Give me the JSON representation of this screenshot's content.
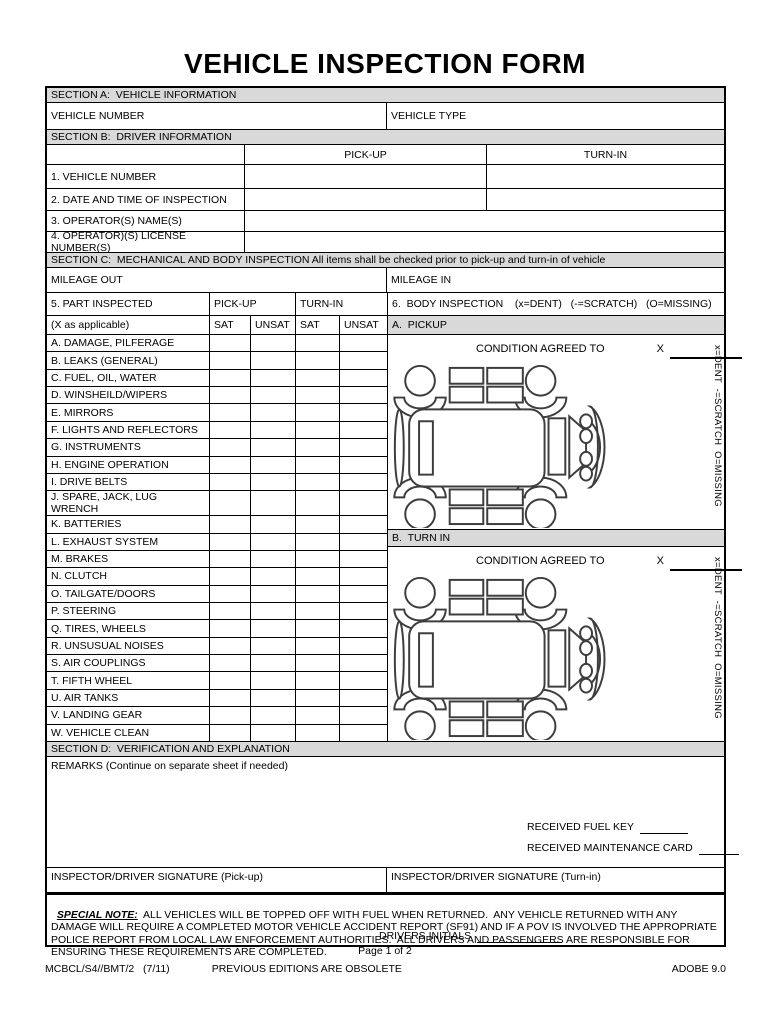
{
  "title": "VEHICLE INSPECTION FORM",
  "colors": {
    "section_bar_gray": "#d9d9d9",
    "border_black": "#000000"
  },
  "section_a": {
    "header": "SECTION A:  VEHICLE INFORMATION",
    "vehicle_number_label": "VEHICLE NUMBER",
    "vehicle_type_label": "VEHICLE TYPE"
  },
  "section_b": {
    "header": "SECTION B:  DRIVER INFORMATION",
    "col_pickup": "PICK-UP",
    "col_turnin": "TURN-IN",
    "rows": [
      "1.  VEHICLE NUMBER",
      "2.  DATE AND TIME OF INSPECTION",
      "3.  OPERATOR(S) NAME(S)",
      "4.  OPERATOR)(S) LICENSE NUMBER(S)"
    ]
  },
  "section_c": {
    "header": "SECTION C:  MECHANICAL AND BODY INSPECTION All items shall be checked prior to pick-up and turn-in of vehicle",
    "mileage_out": "MILEAGE OUT",
    "mileage_in": "MILEAGE IN",
    "part_col_header": "5.  PART INSPECTED",
    "part_col_subheader": "(X as applicable)",
    "pickup": "PICK-UP",
    "turnin": "TURN-IN",
    "sat": "SAT",
    "unsat": "UNSAT",
    "parts": [
      "A.  DAMAGE, PILFERAGE",
      "B.  LEAKS (GENERAL)",
      "C.  FUEL, OIL, WATER",
      "D.  WINSHEILD/WIPERS",
      "E.  MIRRORS",
      "F.  LIGHTS AND REFLECTORS",
      "G.  INSTRUMENTS",
      "H.  ENGINE OPERATION",
      "I.  DRIVE BELTS",
      "J.  SPARE, JACK, LUG WRENCH",
      "K.  BATTERIES",
      "L.  EXHAUST SYSTEM",
      "M.  BRAKES",
      "N.  CLUTCH",
      "O.  TAILGATE/DOORS",
      "P.  STEERING",
      "Q.  TIRES, WHEELS",
      "R.  UNSUSUAL NOISES",
      "S.  AIR COUPLINGS",
      "T.  FIFTH WHEEL",
      "U.  AIR TANKS",
      "V.  LANDING GEAR",
      "W. VEHICLE CLEAN"
    ],
    "body_header": "6.  BODY INSPECTION    (x=DENT)   (-=SCRATCH)   (O=MISSING)",
    "pickup_bar": "A.  PICKUP",
    "turnin_bar": "B.  TURN IN",
    "condition_label": "CONDITION AGREED TO",
    "condition_x": "X",
    "legend": "x=DENT  -=SCRATCH  O=MISSING"
  },
  "section_d": {
    "header": "SECTION D:  VERIFICATION AND EXPLANATION",
    "remarks_label": "REMARKS (Continue on separate sheet if needed)",
    "received_fuel_key": "RECEIVED FUEL KEY",
    "received_maintenance_card": "RECEIVED MAINTENANCE CARD",
    "sig_pickup": "INSPECTOR/DRIVER SIGNATURE (Pick-up)",
    "sig_turnin": "INSPECTOR/DRIVER SIGNATURE (Turn-in)"
  },
  "special_note": {
    "label": "SPECIAL NOTE:",
    "text": "  ALL VEHICLES WILL BE TOPPED OFF WITH FUEL WHEN RETURNED.  ANY VEHICLE RETURNED WITH ANY DAMAGE WILL REQUIRE A COMPLETED MOTOR VEHICLE ACCIDENT REPORT (SF91) AND IF A POV IS INVOLVED THE APPROPRIATE POLICE REPORT FROM LOCAL LAW ENFORCEMENT AUTHORITIES.  ALL DRIVERS AND PASSENGERS ARE RESPONSIBLE FOR ENSURING THESE REQUIREMENTS ARE COMPLETED.",
    "drivers_initials": "DRIVERS INITIALS"
  },
  "footer": {
    "page": "Page 1 of 2",
    "form_number": "MCBCL/S4//BMT/2   (7/11)",
    "editions": "PREVIOUS EDITIONS ARE OBSOLETE",
    "adobe": "ADOBE 9.0"
  }
}
